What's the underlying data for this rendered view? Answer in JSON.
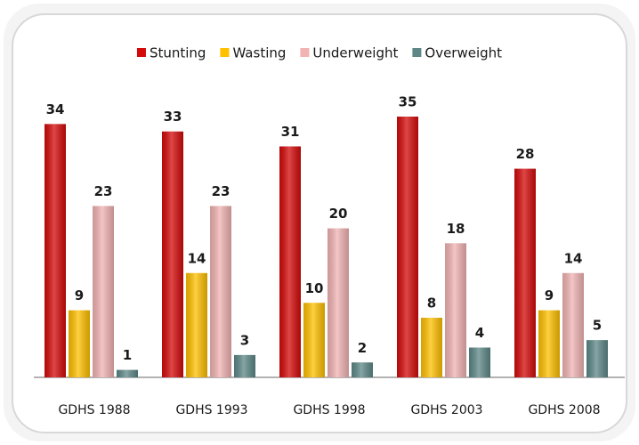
{
  "chart_data": {
    "type": "bar",
    "categories": [
      "GDHS 1988",
      "GDHS 1993",
      "GDHS 1998",
      "GDHS 2003",
      "GDHS 2008"
    ],
    "series": [
      {
        "name": "Stunting",
        "color": "#d40a0a",
        "values": [
          34,
          33,
          31,
          35,
          28
        ]
      },
      {
        "name": "Wasting",
        "color": "#ffc000",
        "values": [
          9,
          14,
          10,
          8,
          9
        ]
      },
      {
        "name": "Underweight",
        "color": "#f2b3b3",
        "values": [
          23,
          23,
          20,
          18,
          14
        ]
      },
      {
        "name": "Overweight",
        "color": "#5e8888",
        "values": [
          1,
          3,
          2,
          4,
          5
        ]
      }
    ],
    "legend": "top"
  }
}
